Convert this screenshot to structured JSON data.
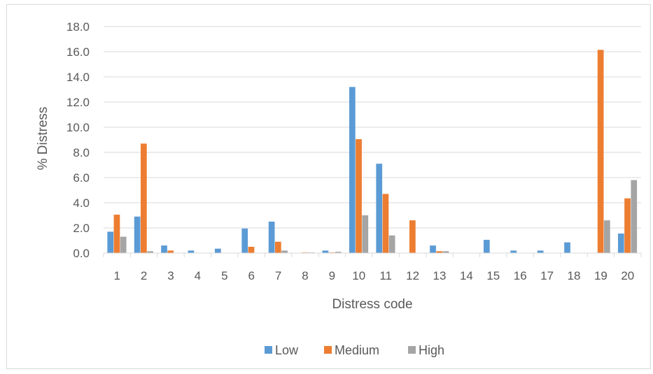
{
  "chart_data": {
    "type": "bar",
    "title": "",
    "xlabel": "Distress code",
    "ylabel": "% Distress",
    "ylim": [
      0,
      18
    ],
    "ytick_step": 2,
    "ytick_labels": [
      "0.0",
      "2.0",
      "4.0",
      "6.0",
      "8.0",
      "10.0",
      "12.0",
      "14.0",
      "16.0",
      "18.0"
    ],
    "grid": true,
    "legend_position": "bottom",
    "categories": [
      "1",
      "2",
      "3",
      "4",
      "5",
      "6",
      "7",
      "8",
      "9",
      "10",
      "11",
      "12",
      "13",
      "14",
      "15",
      "16",
      "17",
      "18",
      "19",
      "20"
    ],
    "series": [
      {
        "name": "Low",
        "color": "#5b9bd5",
        "values": [
          1.7,
          2.9,
          0.6,
          0.2,
          0.35,
          1.95,
          2.5,
          0.0,
          0.2,
          13.2,
          7.1,
          0.0,
          0.6,
          0.0,
          1.05,
          0.2,
          0.2,
          0.85,
          0.0,
          1.55
        ]
      },
      {
        "name": "Medium",
        "color": "#ed7d31",
        "values": [
          3.05,
          8.7,
          0.2,
          0.0,
          0.0,
          0.5,
          0.9,
          0.05,
          0.05,
          9.05,
          4.7,
          2.6,
          0.15,
          0.0,
          0.0,
          0.0,
          0.0,
          0.0,
          16.15,
          4.35
        ]
      },
      {
        "name": "High",
        "color": "#a5a5a5",
        "values": [
          1.3,
          0.15,
          0.0,
          0.0,
          0.0,
          0.0,
          0.2,
          0.05,
          0.1,
          3.0,
          1.4,
          0.0,
          0.15,
          0.0,
          0.0,
          0.0,
          0.0,
          0.0,
          2.6,
          5.8
        ]
      }
    ]
  }
}
